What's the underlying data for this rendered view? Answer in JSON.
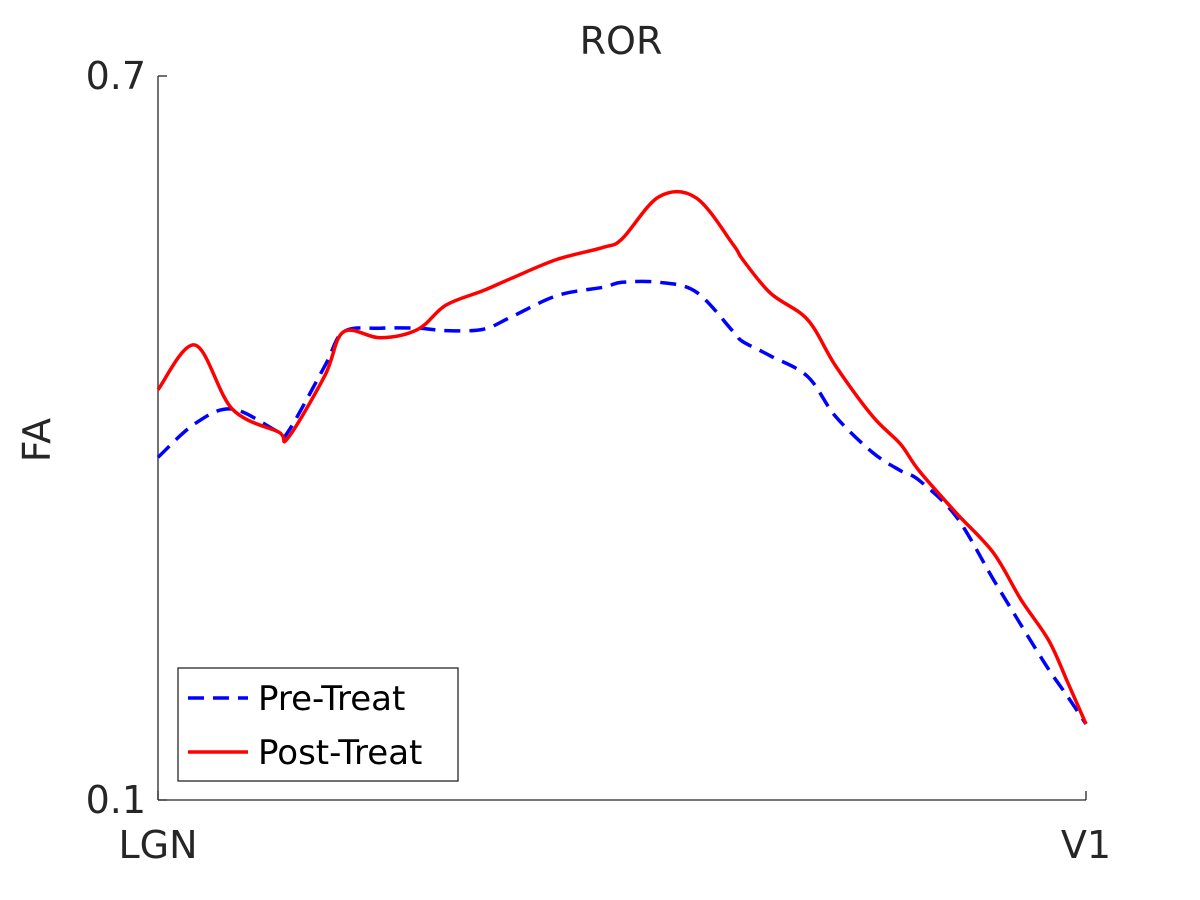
{
  "chart_data": {
    "type": "line",
    "title": "ROR",
    "xlabel": "",
    "ylabel": "FA",
    "xlim": [
      0,
      100
    ],
    "ylim": [
      0.1,
      0.7
    ],
    "xtick_labels": [
      "LGN",
      "V1"
    ],
    "ytick_labels": [
      "0.1",
      "0.7"
    ],
    "grid": false,
    "legend_position": "bottom-left",
    "x": [
      0,
      4,
      8,
      13,
      14,
      18,
      20,
      24,
      28,
      31,
      35,
      38,
      43,
      48,
      50,
      54,
      58,
      62,
      63,
      66,
      70,
      73,
      77,
      80,
      82,
      86,
      90,
      93,
      96,
      98,
      100
    ],
    "series": [
      {
        "name": "Pre-Treat",
        "color": "#0000ff",
        "dash": "dashed",
        "values": [
          0.384,
          0.412,
          0.424,
          0.405,
          0.405,
          0.46,
          0.488,
          0.491,
          0.491,
          0.489,
          0.49,
          0.5,
          0.518,
          0.525,
          0.529,
          0.529,
          0.521,
          0.488,
          0.48,
          0.468,
          0.451,
          0.418,
          0.388,
          0.373,
          0.365,
          0.335,
          0.283,
          0.245,
          0.208,
          0.186,
          0.163
        ]
      },
      {
        "name": "Post-Treat",
        "color": "#ff0000",
        "dash": "solid",
        "values": [
          0.44,
          0.477,
          0.424,
          0.405,
          0.4,
          0.452,
          0.488,
          0.483,
          0.49,
          0.51,
          0.522,
          0.532,
          0.548,
          0.558,
          0.565,
          0.6,
          0.599,
          0.56,
          0.548,
          0.52,
          0.498,
          0.46,
          0.418,
          0.395,
          0.373,
          0.338,
          0.305,
          0.266,
          0.232,
          0.198,
          0.163
        ]
      }
    ]
  }
}
